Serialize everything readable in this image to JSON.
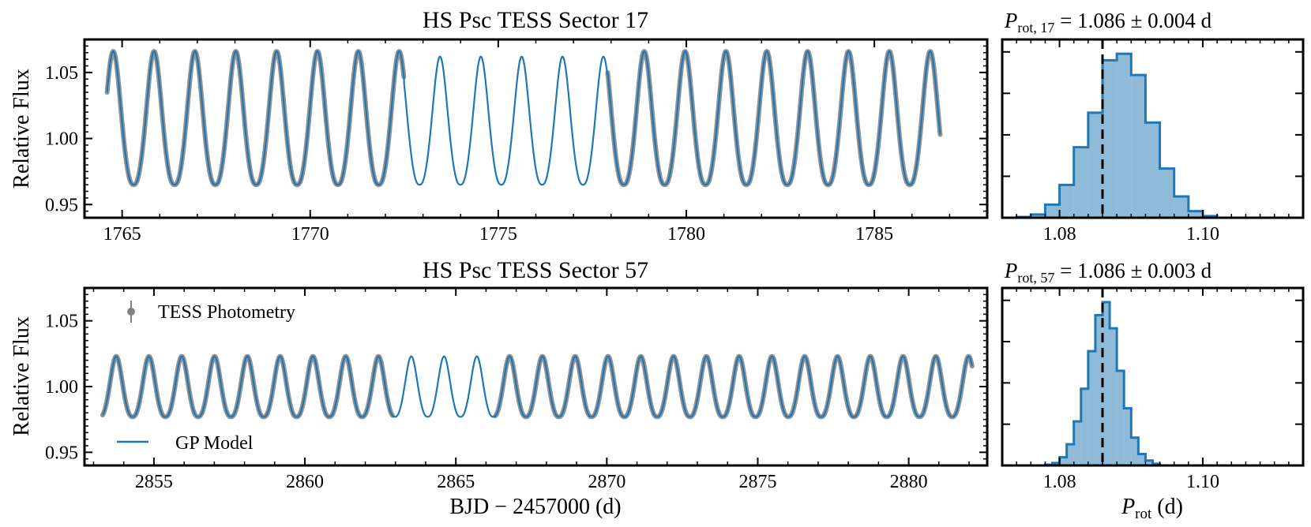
{
  "chart_data": [
    {
      "panel": "sector-17-light-curve",
      "type": "line",
      "title": "HS Psc TESS Sector 17",
      "xlabel": "",
      "ylabel": "Relative Flux",
      "xlim": [
        1764.0,
        1788.0
      ],
      "ylim": [
        0.94,
        1.075
      ],
      "xticks": [
        1765,
        1770,
        1775,
        1780,
        1785
      ],
      "xtick_labels": [
        "1765",
        "1770",
        "1775",
        "1780",
        "1785"
      ],
      "yticks": [
        0.95,
        1.0,
        1.05
      ],
      "ytick_labels": [
        "0.95",
        "1.00",
        "1.05"
      ],
      "grid": false,
      "model": {
        "period_d": 1.086,
        "peak_phase_time": 1765.85,
        "minimum_flux": 0.965,
        "maximum_flux": 1.066,
        "gap_maximum_flux": 1.062,
        "x_start": 1764.6,
        "x_end": 1786.75
      },
      "data_gap": [
        1772.5,
        1777.9
      ],
      "series": [
        {
          "name": "TESS Photometry",
          "color": "#808080",
          "style": "points"
        },
        {
          "name": "GP Model",
          "color": "#1f77b4",
          "style": "line"
        }
      ]
    },
    {
      "panel": "sector-17-period-posterior",
      "type": "bar",
      "title": "P_rot, 17 = 1.086 ± 0.004 d",
      "xlim": [
        1.072,
        1.114
      ],
      "xticks": [
        1.08,
        1.1
      ],
      "xtick_labels": [
        "1.08",
        "1.10"
      ],
      "bin_width": 0.002,
      "bin_starts": [
        1.074,
        1.076,
        1.078,
        1.08,
        1.082,
        1.084,
        1.086,
        1.088,
        1.09,
        1.092,
        1.094,
        1.096,
        1.098,
        1.1
      ],
      "counts": [
        0.5,
        2,
        8,
        20,
        43,
        64,
        96,
        100,
        87,
        58,
        30,
        13,
        4,
        1
      ],
      "median": 1.086,
      "color": "#1f77b4"
    },
    {
      "panel": "sector-57-light-curve",
      "type": "line",
      "title": "HS Psc TESS Sector 57",
      "xlabel": "BJD − 2457000 (d)",
      "ylabel": "Relative Flux",
      "xlim": [
        2852.7,
        2882.6
      ],
      "ylim": [
        0.94,
        1.075
      ],
      "xticks": [
        2855,
        2860,
        2865,
        2870,
        2875,
        2880
      ],
      "xtick_labels": [
        "2855",
        "2860",
        "2865",
        "2870",
        "2875",
        "2880"
      ],
      "yticks": [
        0.95,
        1.0,
        1.05
      ],
      "ytick_labels": [
        "0.95",
        "1.00",
        "1.05"
      ],
      "grid": false,
      "legend": "upper-left",
      "model": {
        "period_d": 1.086,
        "peak_phase_time": 2853.75,
        "minimum_flux": 0.977,
        "maximum_flux": 1.023,
        "x_start": 2853.3,
        "x_end": 2882.1
      },
      "data_gap": [
        2862.9,
        2866.3
      ],
      "series": [
        {
          "name": "TESS Photometry",
          "color": "#808080",
          "style": "points"
        },
        {
          "name": "GP Model",
          "color": "#1f77b4",
          "style": "line"
        }
      ]
    },
    {
      "panel": "sector-57-period-posterior",
      "type": "bar",
      "title": "P_rot, 57 = 1.086 ± 0.003 d",
      "xlabel": "P_rot (d)",
      "xlim": [
        1.072,
        1.114
      ],
      "xticks": [
        1.08,
        1.1
      ],
      "xtick_labels": [
        "1.08",
        "1.10"
      ],
      "bin_width": 0.001,
      "bin_starts": [
        1.078,
        1.079,
        1.08,
        1.081,
        1.082,
        1.083,
        1.084,
        1.085,
        1.086,
        1.087,
        1.088,
        1.089,
        1.09,
        1.091,
        1.092,
        1.093
      ],
      "counts": [
        0.5,
        1.5,
        5,
        13,
        27,
        47,
        70,
        92,
        100,
        84,
        58,
        35,
        17,
        7,
        3,
        1
      ],
      "median": 1.086,
      "color": "#1f77b4"
    }
  ],
  "legend": {
    "photometry_label": "TESS Photometry",
    "model_label": "GP Model"
  },
  "text": {
    "title_s17": "HS Psc TESS Sector 17",
    "title_s57": "HS Psc TESS Sector 57",
    "ylabel_top": "Relative Flux",
    "ylabel_bottom": "Relative Flux",
    "xlabel_bottom": "BJD − 2457000 (d)",
    "p17_sub": "rot, 17",
    "p17_value": " = 1.086 ± 0.004 d",
    "p57_sub": "rot, 57",
    "p57_value": " = 1.086 ± 0.003 d",
    "prot_symbol": "P",
    "prot_sub": "rot",
    "prot_unit": " (d)"
  }
}
